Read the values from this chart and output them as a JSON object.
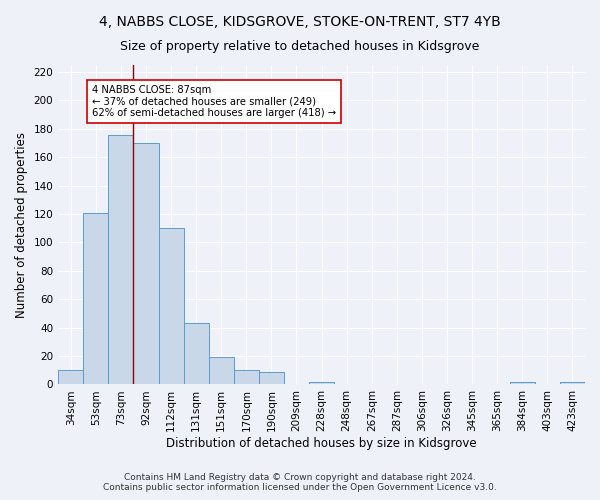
{
  "title": "4, NABBS CLOSE, KIDSGROVE, STOKE-ON-TRENT, ST7 4YB",
  "subtitle": "Size of property relative to detached houses in Kidsgrove",
  "xlabel": "Distribution of detached houses by size in Kidsgrove",
  "ylabel": "Number of detached properties",
  "bin_labels": [
    "34sqm",
    "53sqm",
    "73sqm",
    "92sqm",
    "112sqm",
    "131sqm",
    "151sqm",
    "170sqm",
    "190sqm",
    "209sqm",
    "228sqm",
    "248sqm",
    "267sqm",
    "287sqm",
    "306sqm",
    "326sqm",
    "345sqm",
    "365sqm",
    "384sqm",
    "403sqm",
    "423sqm"
  ],
  "bar_heights": [
    10,
    121,
    176,
    170,
    110,
    43,
    19,
    10,
    9,
    0,
    2,
    0,
    0,
    0,
    0,
    0,
    0,
    0,
    2,
    0,
    2
  ],
  "bar_color": "#c8d8e8",
  "bar_edge_color": "#5b9bd5",
  "annotation_title": "4 NABBS CLOSE: 87sqm",
  "annotation_line1": "← 37% of detached houses are smaller (249)",
  "annotation_line2": "62% of semi-detached houses are larger (418) →",
  "ylim": [
    0,
    225
  ],
  "yticks": [
    0,
    20,
    40,
    60,
    80,
    100,
    120,
    140,
    160,
    180,
    200,
    220
  ],
  "footnote1": "Contains HM Land Registry data © Crown copyright and database right 2024.",
  "footnote2": "Contains public sector information licensed under the Open Government Licence v3.0.",
  "bg_color": "#eef2f8",
  "grid_color": "#d0d8e8",
  "title_fontsize": 10,
  "subtitle_fontsize": 9,
  "axis_label_fontsize": 8.5,
  "tick_fontsize": 7.5,
  "footnote_fontsize": 6.5
}
